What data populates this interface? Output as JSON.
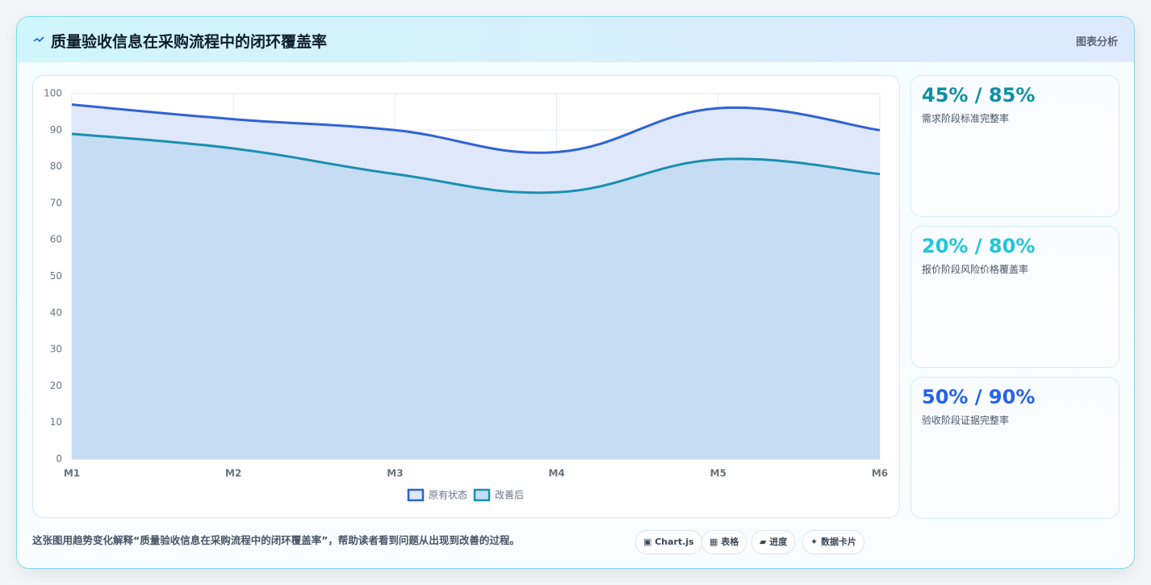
{
  "header": {
    "title": "质量验收信息在采购流程中的闭环覆盖率",
    "tag": "图表分析"
  },
  "chart_data": {
    "type": "line",
    "area": true,
    "categories": [
      "M1",
      "M2",
      "M3",
      "M4",
      "M5",
      "M6"
    ],
    "series": [
      {
        "name": "原有状态",
        "color": "#2f62d6",
        "fill": "#dfe8fb",
        "values": [
          97,
          93,
          90,
          84,
          96,
          90
        ]
      },
      {
        "name": "改善后",
        "color": "#1a8fb0",
        "fill": "#c5dcf2",
        "values": [
          89,
          85,
          78,
          73,
          82,
          78
        ]
      }
    ],
    "ylim": [
      0,
      100
    ],
    "yticks": [
      0,
      10,
      20,
      30,
      40,
      50,
      60,
      70,
      80,
      90,
      100
    ],
    "grid": true,
    "legend": "bottom"
  },
  "kpis": [
    {
      "value": "45% / 85%",
      "label": "需求阶段标准完整率",
      "color": "#0e8fa5"
    },
    {
      "value": "20% / 80%",
      "label": "报价阶段风险价格覆盖率",
      "color": "#22c5d9"
    },
    {
      "value": "50% / 90%",
      "label": "验收阶段证据完整率",
      "color": "#2563eb"
    }
  ],
  "footer": {
    "text": "这张图用趋势变化解释“质量验收信息在采购流程中的闭环覆盖率”，帮助读者看到问题从出现到改善的过程。",
    "tags": [
      "▣ Chart.js",
      "▦ 表格",
      "▰ 进度",
      "✦ 数据卡片"
    ]
  }
}
